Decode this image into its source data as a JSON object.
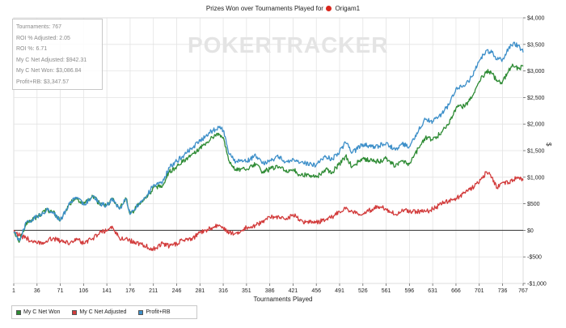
{
  "title": {
    "prefix": "Prizes Won over Tournaments Played for",
    "player": "Origam1"
  },
  "watermark": "POKERTRACKER",
  "stats": [
    "Tournaments: 767",
    "ROI % Adjusted: 2.05",
    "ROI %: 6.71",
    "My C Net Adjusted: $942.31",
    "My C Net Won: $3,086.84",
    "Profit+RB: $3,347.57"
  ],
  "colors": {
    "net_won": "#2e8b34",
    "net_adjusted": "#d23b3b",
    "profit_rb": "#3d8fc9",
    "grid": "#e3e3e3",
    "zero_line": "#333333"
  },
  "chart_data": {
    "type": "line",
    "xlabel": "Tournaments Played",
    "ylabel": "$",
    "xlim": [
      1,
      767
    ],
    "ylim": [
      -1000,
      4000
    ],
    "grid": true,
    "legend_position": "bottom-left",
    "x_ticks": [
      1,
      36,
      71,
      106,
      141,
      176,
      211,
      246,
      281,
      316,
      351,
      386,
      421,
      456,
      491,
      526,
      561,
      596,
      631,
      666,
      701,
      736,
      767
    ],
    "y_ticks": [
      -1000,
      -500,
      0,
      500,
      1000,
      1500,
      2000,
      2500,
      3000,
      3500,
      4000
    ],
    "y_tick_labels": [
      "-$1,000",
      "-$500",
      "$0",
      "$500",
      "$1,000",
      "$1,500",
      "$2,000",
      "$2,500",
      "$3,000",
      "$3,500",
      "$4,000"
    ],
    "series": [
      {
        "name": "My C Net Won",
        "color": "#2e8b34",
        "x": [
          1,
          10,
          20,
          36,
          50,
          60,
          71,
          85,
          95,
          106,
          120,
          130,
          141,
          150,
          160,
          170,
          176,
          190,
          200,
          211,
          225,
          235,
          246,
          260,
          270,
          281,
          290,
          300,
          310,
          316,
          325,
          335,
          351,
          365,
          375,
          386,
          400,
          410,
          421,
          430,
          440,
          456,
          470,
          480,
          491,
          500,
          510,
          526,
          540,
          550,
          561,
          575,
          585,
          596,
          610,
          620,
          631,
          645,
          655,
          666,
          680,
          690,
          701,
          712,
          720,
          728,
          736,
          745,
          752,
          760,
          767
        ],
        "y": [
          -30,
          -200,
          150,
          250,
          380,
          350,
          180,
          500,
          620,
          480,
          650,
          500,
          470,
          600,
          400,
          600,
          300,
          500,
          600,
          800,
          850,
          1100,
          1200,
          1350,
          1450,
          1550,
          1650,
          1750,
          1800,
          1750,
          1300,
          1150,
          1150,
          1250,
          1100,
          1150,
          1200,
          1100,
          1150,
          1050,
          1050,
          1000,
          1150,
          1100,
          1250,
          1400,
          1200,
          1350,
          1300,
          1300,
          1350,
          1200,
          1300,
          1250,
          1550,
          1750,
          1700,
          1850,
          2000,
          2300,
          2350,
          2500,
          2800,
          3000,
          2950,
          2800,
          2800,
          3000,
          3100,
          3050,
          3086.84
        ]
      },
      {
        "name": "My C Net Adjusted",
        "color": "#d23b3b",
        "x": [
          1,
          10,
          20,
          36,
          50,
          60,
          71,
          85,
          95,
          106,
          120,
          130,
          141,
          150,
          160,
          170,
          176,
          190,
          200,
          211,
          225,
          235,
          246,
          260,
          270,
          281,
          290,
          300,
          310,
          316,
          325,
          335,
          351,
          365,
          375,
          386,
          400,
          410,
          421,
          430,
          440,
          456,
          470,
          480,
          491,
          500,
          510,
          526,
          540,
          550,
          561,
          575,
          585,
          596,
          610,
          620,
          631,
          645,
          655,
          666,
          680,
          690,
          701,
          712,
          720,
          728,
          736,
          745,
          752,
          760,
          767
        ],
        "y": [
          0,
          -100,
          -150,
          -250,
          -200,
          -150,
          -200,
          -250,
          -150,
          -250,
          -150,
          -50,
          0,
          50,
          -150,
          -150,
          -200,
          -250,
          -300,
          -350,
          -250,
          -300,
          -250,
          -150,
          -150,
          -50,
          0,
          50,
          100,
          50,
          -50,
          -50,
          50,
          100,
          150,
          250,
          250,
          200,
          300,
          200,
          150,
          150,
          200,
          250,
          350,
          400,
          350,
          300,
          400,
          450,
          400,
          300,
          400,
          350,
          350,
          350,
          400,
          500,
          550,
          600,
          700,
          800,
          900,
          1100,
          1000,
          800,
          900,
          900,
          950,
          1000,
          942.31
        ]
      },
      {
        "name": "Profit+RB",
        "color": "#3d8fc9",
        "x": [
          1,
          10,
          20,
          36,
          50,
          60,
          71,
          85,
          95,
          106,
          120,
          130,
          141,
          150,
          160,
          170,
          176,
          190,
          200,
          211,
          225,
          235,
          246,
          260,
          270,
          281,
          290,
          300,
          310,
          316,
          325,
          335,
          351,
          365,
          375,
          386,
          400,
          410,
          421,
          430,
          440,
          456,
          470,
          480,
          491,
          500,
          510,
          526,
          540,
          550,
          561,
          575,
          585,
          596,
          610,
          620,
          631,
          645,
          655,
          666,
          680,
          690,
          701,
          712,
          720,
          728,
          736,
          745,
          752,
          760,
          767
        ],
        "y": [
          -30,
          -200,
          150,
          250,
          380,
          350,
          180,
          500,
          620,
          480,
          650,
          500,
          470,
          600,
          400,
          600,
          300,
          520,
          630,
          850,
          920,
          1180,
          1300,
          1450,
          1560,
          1680,
          1780,
          1880,
          1930,
          1880,
          1430,
          1290,
          1300,
          1400,
          1260,
          1320,
          1380,
          1290,
          1350,
          1260,
          1260,
          1230,
          1380,
          1340,
          1490,
          1650,
          1460,
          1620,
          1580,
          1590,
          1650,
          1510,
          1620,
          1580,
          1890,
          2090,
          2050,
          2200,
          2360,
          2670,
          2730,
          2890,
          3190,
          3390,
          3350,
          3210,
          3220,
          3420,
          3520,
          3480,
          3347.57
        ]
      }
    ]
  }
}
